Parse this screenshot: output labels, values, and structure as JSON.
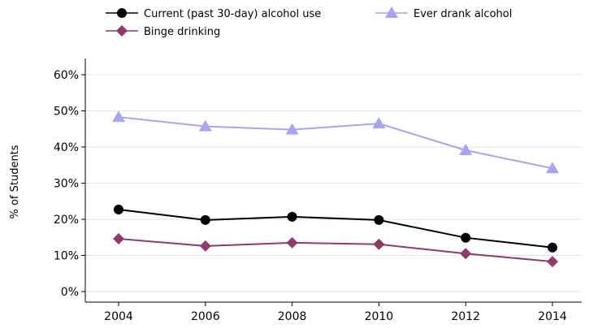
{
  "chart_data": {
    "type": "line",
    "x": [
      2004,
      2006,
      2008,
      2010,
      2012,
      2014
    ],
    "x_tick_labels": [
      "2004",
      "2006",
      "2008",
      "2010",
      "2012",
      "2014"
    ],
    "ylabel": "% of Students",
    "ylim": [
      0,
      60
    ],
    "y_tick_labels": [
      "0%",
      "10%",
      "20%",
      "30%",
      "40%",
      "50%",
      "60%"
    ],
    "grid": true,
    "legend_position": "top",
    "series": [
      {
        "name": "Current (past 30-day) alcohol use",
        "values": [
          22.7,
          19.8,
          20.7,
          19.8,
          14.9,
          12.2
        ],
        "color": "#000000",
        "marker": "circle"
      },
      {
        "name": "Binge drinking",
        "values": [
          14.6,
          12.6,
          13.5,
          13.1,
          10.5,
          8.3
        ],
        "color": "#8e3a6b",
        "marker": "diamond"
      },
      {
        "name": "Ever drank alcohol",
        "values": [
          48.3,
          45.7,
          44.8,
          46.5,
          39.1,
          34.1
        ],
        "color": "#a7a4f3",
        "marker": "triangle"
      }
    ]
  }
}
